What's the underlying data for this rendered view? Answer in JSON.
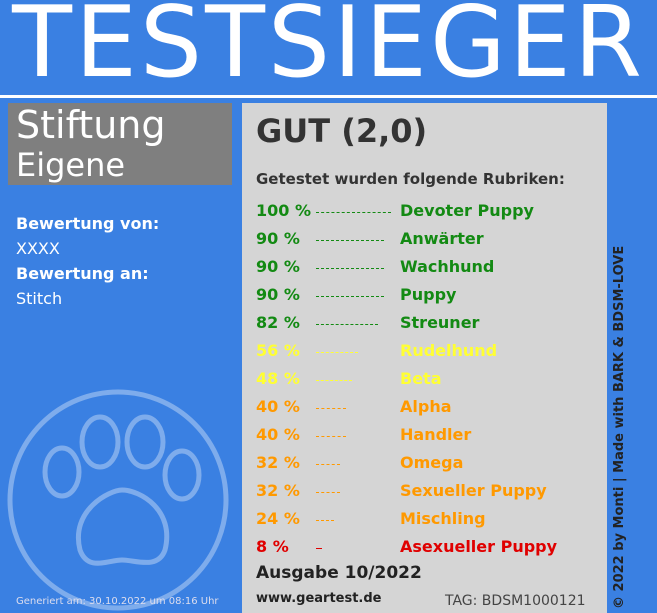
{
  "header": {
    "title": "TESTSIEGER"
  },
  "sidebar": {
    "org_line1": "Stiftung",
    "org_line2": "Eigene",
    "from_label": "Bewertung von:",
    "from_value": "XXXX",
    "to_label": "Bewertung an:",
    "to_value": "Stitch",
    "generated": "Generiert am: 30.10.2022 um 08:16 Uhr"
  },
  "panel": {
    "grade": "GUT (2,0)",
    "intro": "Getestet wurden folgende Rubriken:",
    "rows": [
      {
        "value": 100,
        "label": "100 %",
        "name": "Devoter Puppy",
        "color": "#138a13"
      },
      {
        "value": 90,
        "label": "90 %",
        "name": "Anwärter",
        "color": "#138a13"
      },
      {
        "value": 90,
        "label": "90 %",
        "name": "Wachhund",
        "color": "#138a13"
      },
      {
        "value": 90,
        "label": "90 %",
        "name": "Puppy",
        "color": "#138a13"
      },
      {
        "value": 82,
        "label": "82 %",
        "name": "Streuner",
        "color": "#138a13"
      },
      {
        "value": 56,
        "label": "56 %",
        "name": "Rudelhund",
        "color": "#ffff33"
      },
      {
        "value": 48,
        "label": "48 %",
        "name": "Beta",
        "color": "#ffff33"
      },
      {
        "value": 40,
        "label": "40 %",
        "name": "Alpha",
        "color": "#ff9900"
      },
      {
        "value": 40,
        "label": "40 %",
        "name": "Handler",
        "color": "#ff9900"
      },
      {
        "value": 32,
        "label": "32 %",
        "name": "Omega",
        "color": "#ff9900"
      },
      {
        "value": 32,
        "label": "32 %",
        "name": "Sexueller Puppy",
        "color": "#ff9900"
      },
      {
        "value": 24,
        "label": "24 %",
        "name": "Mischling",
        "color": "#ff9900"
      },
      {
        "value": 8,
        "label": "8 %",
        "name": "Asexueller Puppy",
        "color": "#e00000"
      }
    ],
    "issue": "Ausgabe 10/2022",
    "website": "www.geartest.de",
    "tag": "TAG: BDSM1000121"
  },
  "side_note": "© 2022 by Monti | Made with BARK & BDSM-LOVE"
}
